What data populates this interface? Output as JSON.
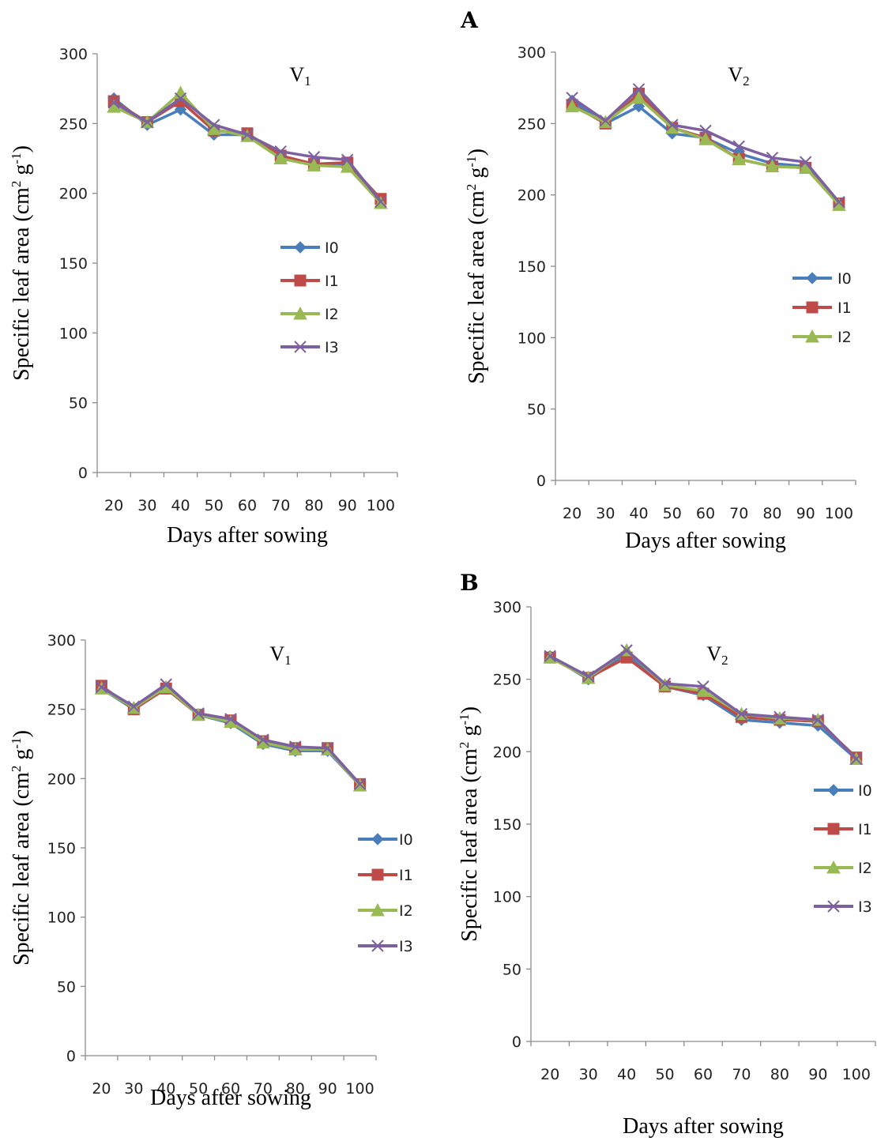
{
  "panels": [
    {
      "letter": "A"
    },
    {
      "letter": "B"
    }
  ],
  "colors": {
    "I0": "#4a7ebb",
    "I1": "#be4b48",
    "I2": "#98b954",
    "I3": "#7d60a0"
  },
  "chart_data": [
    {
      "type": "line",
      "panel": "A",
      "title": "V1",
      "title_base": "V",
      "title_sub": "1",
      "xlabel": "Days after sowing",
      "ylabel": "Specific leaf area (cm2 g-1)",
      "ylabel_parts": [
        "Specific leaf area (cm",
        "2",
        " g",
        "-1",
        ")"
      ],
      "ylim": [
        0,
        300
      ],
      "yticks": [
        0,
        50,
        100,
        150,
        200,
        250,
        300
      ],
      "categories": [
        20,
        30,
        40,
        50,
        60,
        70,
        80,
        90,
        100
      ],
      "legend_position": "center-right",
      "series": [
        {
          "name": "I0",
          "marker": "diamond",
          "values": [
            268,
            249,
            260,
            242,
            242,
            227,
            220,
            220,
            194
          ]
        },
        {
          "name": "I1",
          "marker": "square",
          "values": [
            266,
            251,
            266,
            245,
            243,
            227,
            221,
            222,
            196
          ]
        },
        {
          "name": "I2",
          "marker": "triangle",
          "values": [
            262,
            251,
            272,
            246,
            241,
            225,
            220,
            219,
            193
          ]
        },
        {
          "name": "I3",
          "marker": "x",
          "values": [
            265,
            251,
            268,
            249,
            242,
            230,
            226,
            224,
            194
          ]
        }
      ]
    },
    {
      "type": "line",
      "panel": "A",
      "title": "V2",
      "title_base": "V",
      "title_sub": "2",
      "xlabel": "Days after sowing",
      "ylabel": "Specific leaf area (cm2 g-1)",
      "ylabel_parts": [
        "Specific leaf area (cm",
        "2",
        " g",
        "-1",
        ")"
      ],
      "ylim": [
        0,
        300
      ],
      "yticks": [
        0,
        50,
        100,
        150,
        200,
        250,
        300
      ],
      "categories": [
        20,
        30,
        40,
        50,
        60,
        70,
        80,
        90,
        100
      ],
      "legend_position": "center-right",
      "series": [
        {
          "name": "I0",
          "marker": "diamond",
          "values": [
            266,
            250,
            262,
            243,
            240,
            229,
            222,
            220,
            193
          ]
        },
        {
          "name": "I1",
          "marker": "square",
          "values": [
            263,
            250,
            271,
            247,
            240,
            225,
            220,
            219,
            194
          ]
        },
        {
          "name": "I2",
          "marker": "triangle",
          "values": [
            262,
            251,
            268,
            247,
            239,
            225,
            220,
            219,
            193
          ]
        },
        {
          "name": "I3",
          "marker": "x",
          "values": [
            268,
            252,
            274,
            249,
            245,
            234,
            226,
            223,
            195
          ],
          "in_legend": false
        }
      ]
    },
    {
      "type": "line",
      "panel": "B",
      "title": "V1",
      "title_base": "V",
      "title_sub": "1",
      "xlabel": "Days after sowing",
      "ylabel": "Specific leaf area (cm2 g-1)",
      "ylabel_parts": [
        "Specific leaf area (cm",
        "2",
        " g",
        "-1",
        ")"
      ],
      "ylim": [
        0,
        300
      ],
      "yticks": [
        0,
        50,
        100,
        150,
        200,
        250,
        300
      ],
      "categories": [
        20,
        30,
        40,
        50,
        60,
        70,
        80,
        90,
        100
      ],
      "legend_position": "bottom-right",
      "series": [
        {
          "name": "I0",
          "marker": "diamond",
          "values": [
            265,
            250,
            265,
            246,
            240,
            225,
            220,
            220,
            195
          ]
        },
        {
          "name": "I1",
          "marker": "square",
          "values": [
            267,
            250,
            265,
            246,
            242,
            227,
            222,
            222,
            196
          ]
        },
        {
          "name": "I2",
          "marker": "triangle",
          "values": [
            265,
            251,
            266,
            246,
            241,
            226,
            221,
            221,
            195
          ]
        },
        {
          "name": "I3",
          "marker": "x",
          "values": [
            266,
            252,
            268,
            247,
            243,
            228,
            223,
            222,
            196
          ]
        }
      ]
    },
    {
      "type": "line",
      "panel": "B",
      "title": "V2",
      "title_base": "V",
      "title_sub": "2",
      "xlabel": "Days after sowing",
      "ylabel": "Specific leaf area (cm2 g-1)",
      "ylabel_parts": [
        "Specific leaf area (cm",
        "2",
        " g",
        "-1",
        ")"
      ],
      "ylim": [
        0,
        300
      ],
      "yticks": [
        0,
        50,
        100,
        150,
        200,
        250,
        300
      ],
      "categories": [
        20,
        30,
        40,
        50,
        60,
        70,
        80,
        90,
        100
      ],
      "legend_position": "center-right",
      "series": [
        {
          "name": "I0",
          "marker": "diamond",
          "values": [
            266,
            250,
            268,
            245,
            239,
            222,
            220,
            218,
            195
          ]
        },
        {
          "name": "I1",
          "marker": "square",
          "values": [
            265,
            251,
            265,
            245,
            240,
            224,
            222,
            221,
            196
          ]
        },
        {
          "name": "I2",
          "marker": "triangle",
          "values": [
            265,
            251,
            270,
            246,
            242,
            226,
            223,
            222,
            195
          ]
        },
        {
          "name": "I3",
          "marker": "x",
          "values": [
            266,
            252,
            270,
            247,
            245,
            226,
            224,
            222,
            195
          ]
        }
      ]
    }
  ]
}
